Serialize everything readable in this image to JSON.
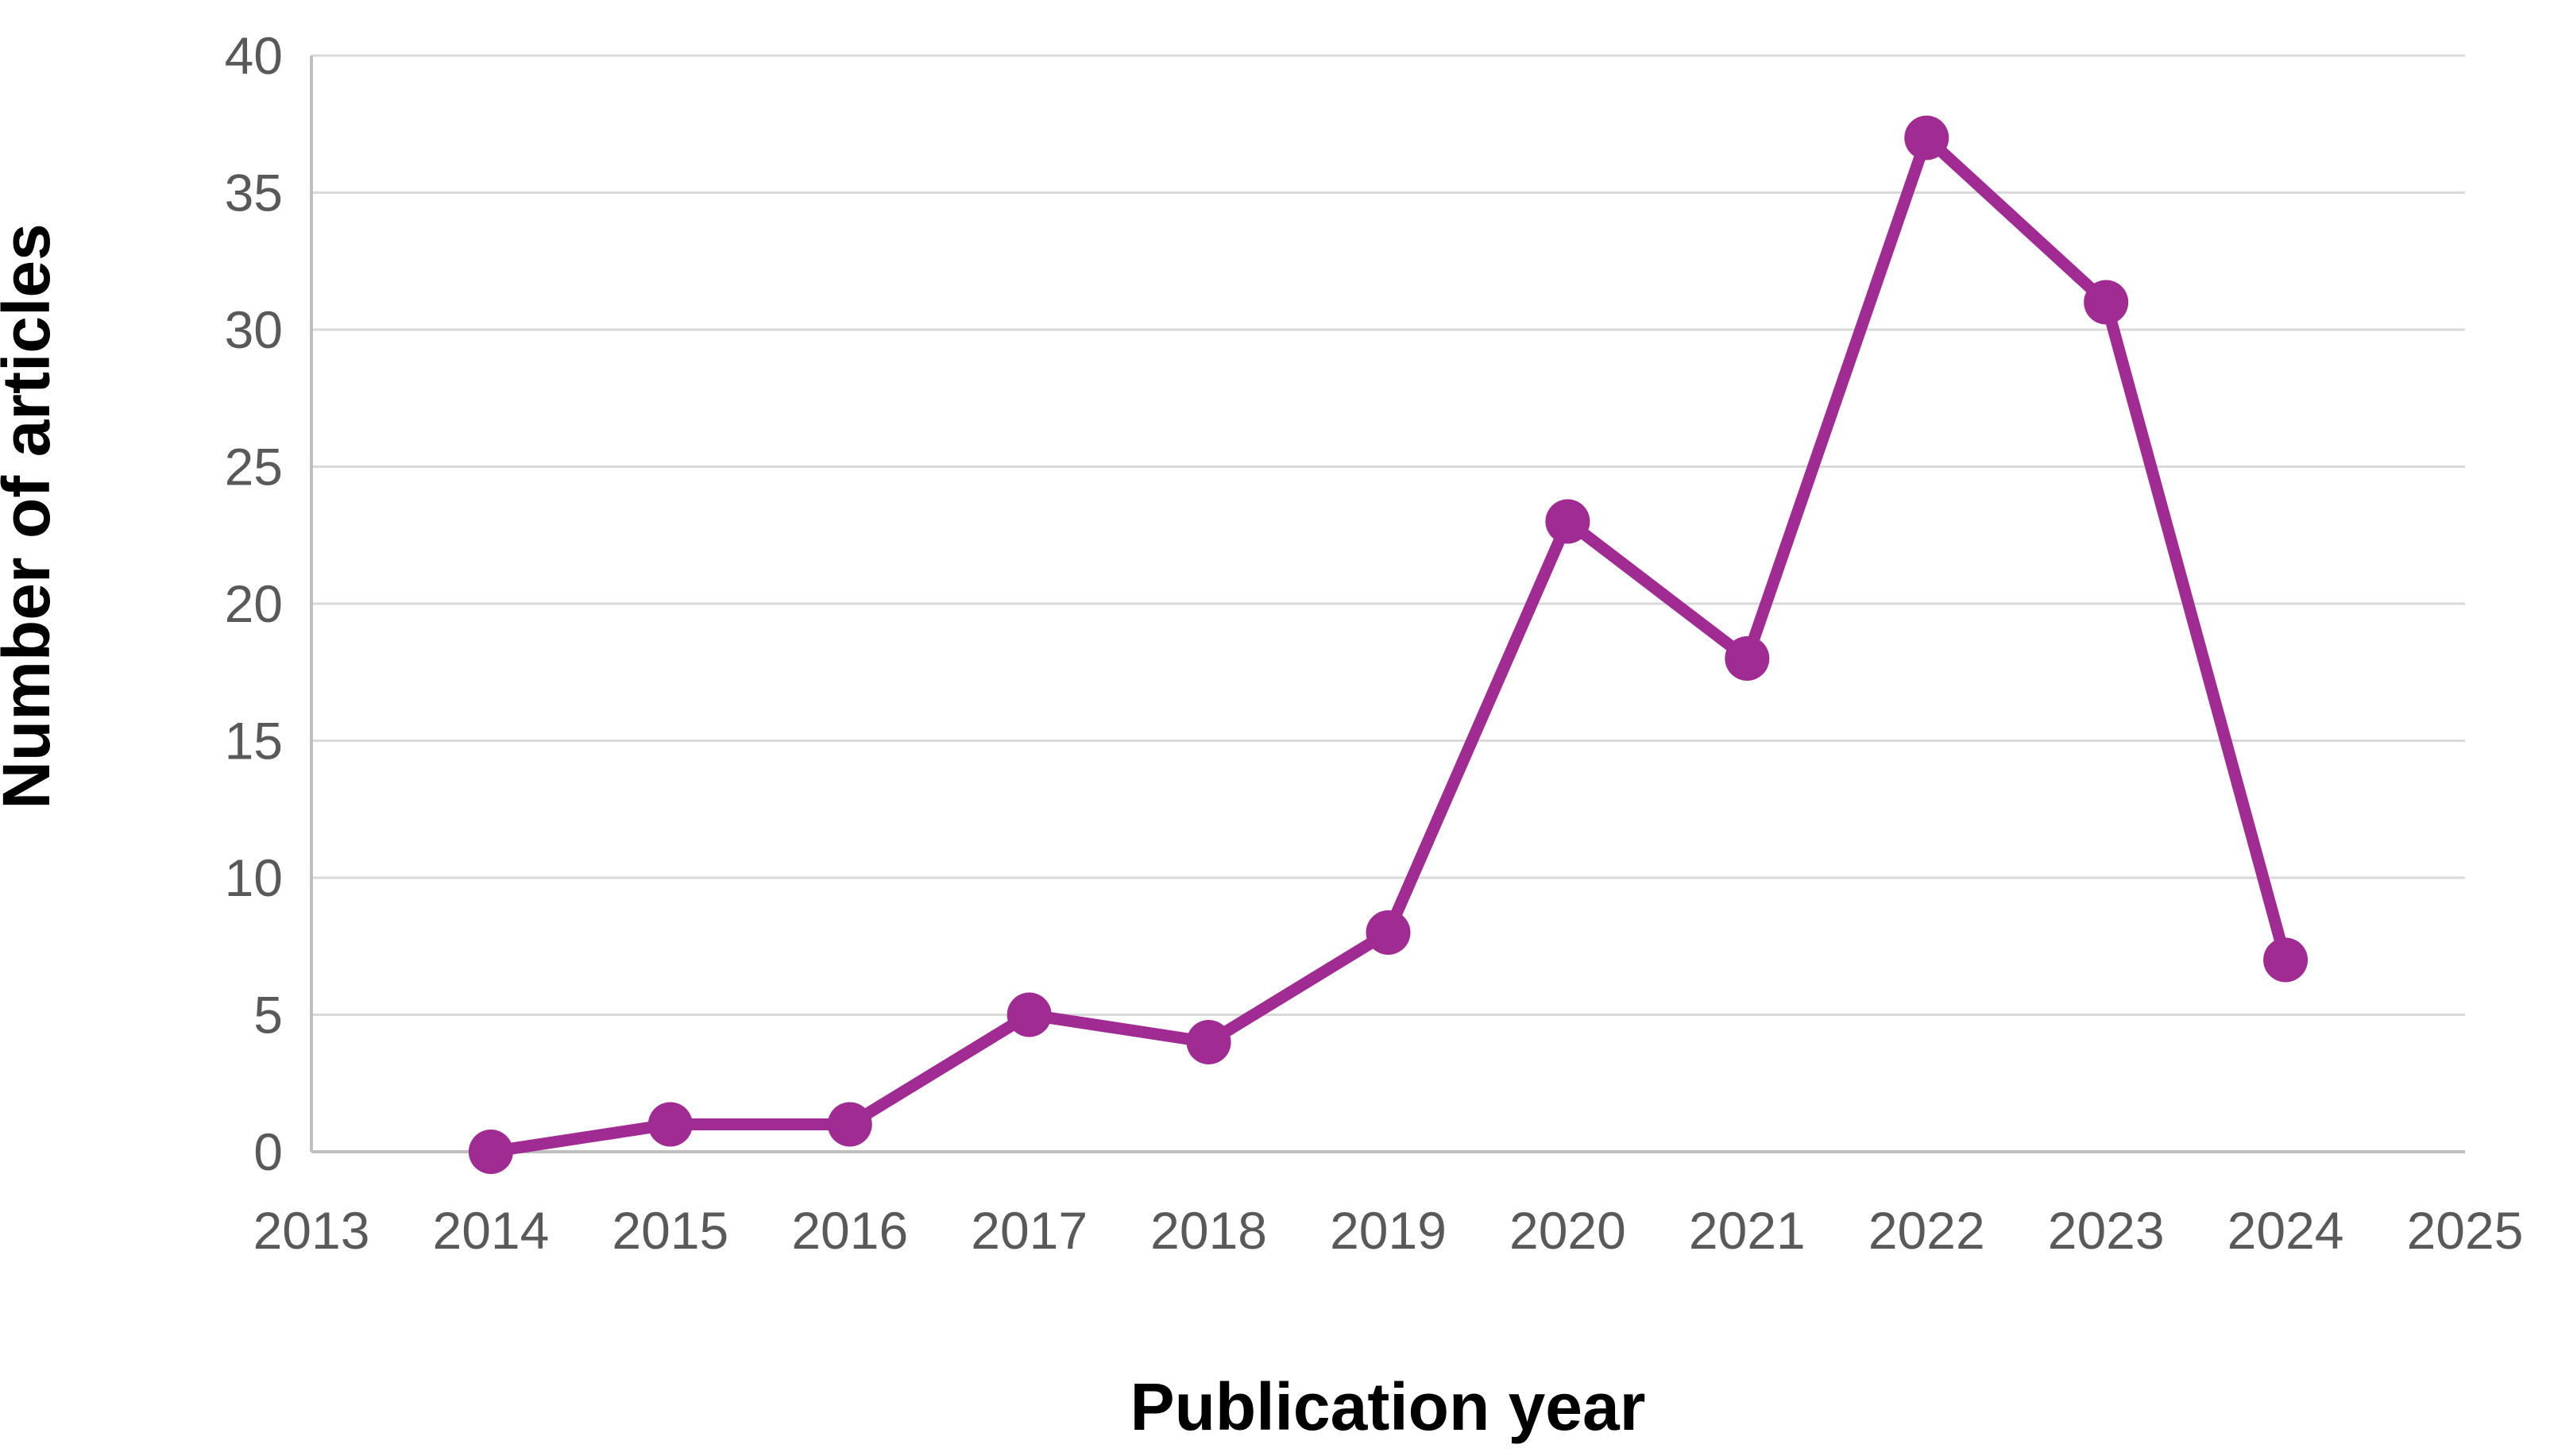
{
  "chart_data": {
    "type": "line",
    "title": "",
    "xlabel": "Publication year",
    "ylabel": "Number of articles",
    "x_tick_labels": [
      "2013",
      "2014",
      "2015",
      "2016",
      "2017",
      "2018",
      "2019",
      "2020",
      "2021",
      "2022",
      "2023",
      "2024",
      "2025"
    ],
    "x_range": [
      2013,
      2025
    ],
    "ylim": [
      0,
      40
    ],
    "y_tick_step": 5,
    "y_tick_labels": [
      "0",
      "5",
      "10",
      "15",
      "20",
      "25",
      "30",
      "35",
      "40"
    ],
    "grid": "horizontal-only",
    "legend": "none",
    "series": [
      {
        "name": "Number of articles",
        "x": [
          2014,
          2015,
          2016,
          2017,
          2018,
          2019,
          2020,
          2021,
          2022,
          2023,
          2024
        ],
        "values": [
          0,
          1,
          1,
          5,
          4,
          8,
          23,
          18,
          37,
          31,
          7
        ],
        "color": "#A02B93",
        "marker": "circle"
      }
    ],
    "colors": {
      "series_line": "#A02B93",
      "marker_fill": "#A02B93",
      "gridline": "#D9D9D9",
      "axis_line": "#BFBFBF",
      "tick_label": "#595959",
      "axis_title": "#000000",
      "background": "#FFFFFF"
    }
  }
}
